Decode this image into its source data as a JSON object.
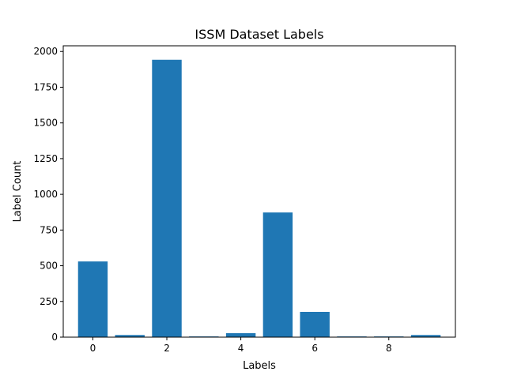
{
  "chart_data": {
    "type": "bar",
    "title": "ISSM Dataset Labels",
    "xlabel": "Labels",
    "ylabel": "Label Count",
    "categories": [
      0,
      1,
      2,
      3,
      4,
      5,
      6,
      7,
      8,
      9
    ],
    "values": [
      530,
      15,
      1942,
      5,
      28,
      873,
      177,
      5,
      5,
      15
    ],
    "xlim": [
      -0.8,
      9.8
    ],
    "ylim": [
      0,
      2040
    ],
    "xticks": [
      0,
      2,
      4,
      6,
      8
    ],
    "yticks": [
      0,
      250,
      500,
      750,
      1000,
      1250,
      1500,
      1750,
      2000
    ],
    "bar_color": "#1f77b4",
    "grid": false,
    "legend": "none"
  }
}
